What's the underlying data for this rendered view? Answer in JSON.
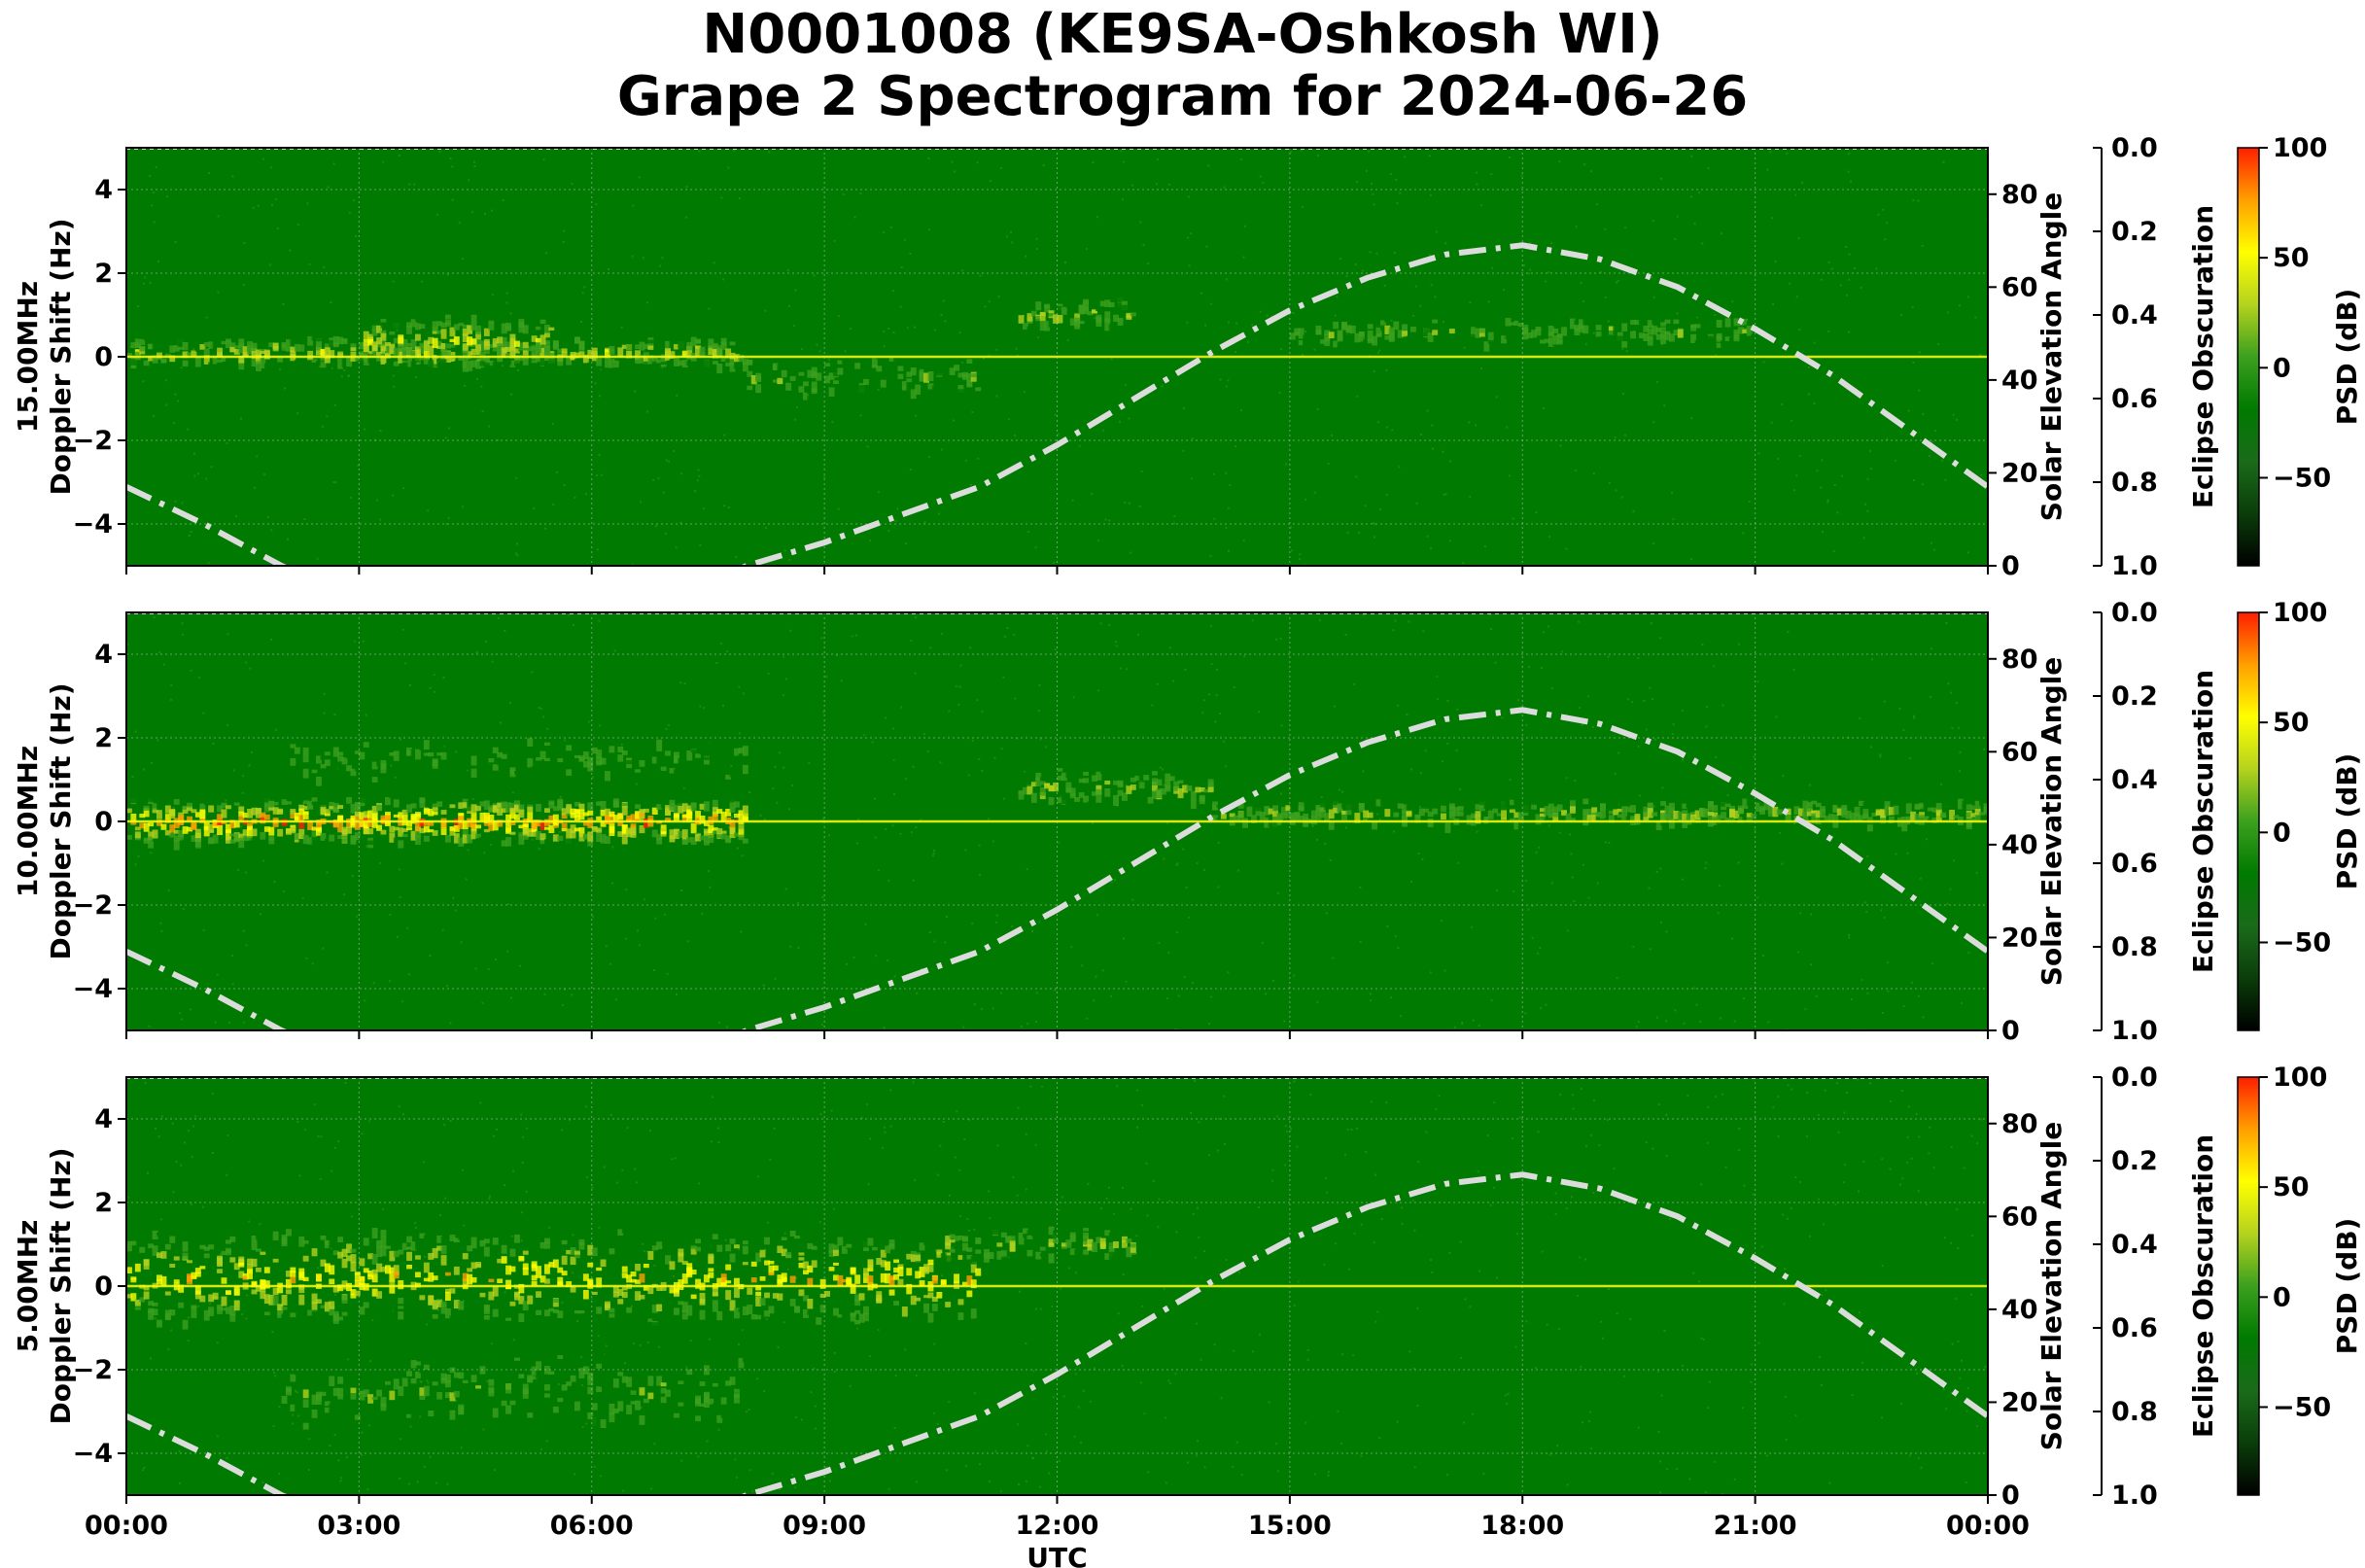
{
  "title_line1": "N0001008 (KE9SA-Oshkosh WI)",
  "title_line2": "Grape 2 Spectrogram for 2024-06-26",
  "colors": {
    "psd_colormap": [
      "#000000",
      "#0a3d0a",
      "#1a6b1a",
      "#007a00",
      "#3ca01e",
      "#b4d21e",
      "#ffff00",
      "#ffa000",
      "#ff1e00"
    ],
    "solar_curve": "#dcdcdc",
    "grid": "#cccccc"
  },
  "chart_data": [
    {
      "type": "heatmap",
      "frequency_label": "15.00MHz",
      "ylabel": "Doppler Shift (Hz)",
      "xlabel": "",
      "ylim": [
        -5,
        5
      ],
      "y_ticks": [
        4,
        2,
        0,
        -2,
        -4
      ],
      "y_tick_labels": [
        "4",
        "2",
        "0",
        "−2",
        "−4"
      ],
      "x_range_hours": [
        0,
        24
      ],
      "right_axis": {
        "label": "Solar Elevation Angle",
        "ylim": [
          0,
          90
        ],
        "ticks": [
          0,
          20,
          40,
          60,
          80
        ]
      },
      "eclipse_axis": {
        "label": "Eclipse Obscuration",
        "ylim": [
          1.0,
          0.0
        ],
        "tick_labels": [
          "0.0",
          "0.2",
          "0.4",
          "0.6",
          "0.8",
          "1.0"
        ]
      },
      "colorbar": {
        "label": "PSD (dB)",
        "range": [
          -90,
          100
        ],
        "tick_labels": [
          "100",
          "50",
          "0",
          "−50"
        ]
      },
      "grid": true,
      "carrier_line_hz": 0,
      "activity": [
        {
          "start_h": 0,
          "end_h": 8,
          "center_hz": 0.1,
          "spread_hz": 0.6,
          "level": 0.55
        },
        {
          "start_h": 3,
          "end_h": 5.5,
          "center_hz": 0.4,
          "spread_hz": 0.9,
          "level": 0.6
        },
        {
          "start_h": 8,
          "end_h": 11,
          "center_hz": -0.5,
          "spread_hz": 1.2,
          "level": 0.45
        },
        {
          "start_h": 11.5,
          "end_h": 13,
          "center_hz": 1.0,
          "spread_hz": 0.7,
          "level": 0.5
        },
        {
          "start_h": 15,
          "end_h": 21,
          "center_hz": 0.6,
          "spread_hz": 0.8,
          "level": 0.45
        }
      ],
      "solar_elevation": {
        "x_hours": [
          0,
          1,
          2,
          3,
          4,
          5,
          6,
          7,
          8,
          9,
          10,
          11,
          12,
          13,
          14,
          15,
          16,
          17,
          18,
          19,
          20,
          21,
          22,
          23,
          24
        ],
        "values": [
          17,
          9,
          0,
          -7,
          -12,
          -14,
          -12,
          -7,
          0,
          5,
          11,
          17,
          26,
          36,
          46,
          55,
          62,
          67,
          69,
          66,
          60,
          51,
          41,
          29,
          17
        ]
      }
    },
    {
      "type": "heatmap",
      "frequency_label": "10.00MHz",
      "ylabel": "Doppler Shift (Hz)",
      "xlabel": "",
      "ylim": [
        -5,
        5
      ],
      "y_ticks": [
        4,
        2,
        0,
        -2,
        -4
      ],
      "y_tick_labels": [
        "4",
        "2",
        "0",
        "−2",
        "−4"
      ],
      "x_range_hours": [
        0,
        24
      ],
      "right_axis": {
        "label": "Solar Elevation Angle",
        "ylim": [
          0,
          90
        ],
        "ticks": [
          0,
          20,
          40,
          60,
          80
        ]
      },
      "eclipse_axis": {
        "label": "Eclipse Obscuration",
        "ylim": [
          1.0,
          0.0
        ],
        "tick_labels": [
          "0.0",
          "0.2",
          "0.4",
          "0.6",
          "0.8",
          "1.0"
        ]
      },
      "colorbar": {
        "label": "PSD (dB)",
        "range": [
          -90,
          100
        ],
        "tick_labels": [
          "100",
          "50",
          "0",
          "−50"
        ]
      },
      "grid": true,
      "carrier_line_hz": 0,
      "activity": [
        {
          "start_h": 0,
          "end_h": 8,
          "center_hz": 0.0,
          "spread_hz": 0.7,
          "level": 0.8
        },
        {
          "start_h": 2,
          "end_h": 8,
          "center_hz": 1.5,
          "spread_hz": 1.5,
          "level": 0.4
        },
        {
          "start_h": 11.5,
          "end_h": 14,
          "center_hz": 0.8,
          "spread_hz": 0.8,
          "level": 0.5
        },
        {
          "start_h": 14,
          "end_h": 24,
          "center_hz": 0.2,
          "spread_hz": 0.6,
          "level": 0.5
        }
      ],
      "solar_elevation": {
        "x_hours": [
          0,
          1,
          2,
          3,
          4,
          5,
          6,
          7,
          8,
          9,
          10,
          11,
          12,
          13,
          14,
          15,
          16,
          17,
          18,
          19,
          20,
          21,
          22,
          23,
          24
        ],
        "values": [
          17,
          9,
          0,
          -7,
          -12,
          -14,
          -12,
          -7,
          0,
          5,
          11,
          17,
          26,
          36,
          46,
          55,
          62,
          67,
          69,
          66,
          60,
          51,
          41,
          29,
          17
        ]
      }
    },
    {
      "type": "heatmap",
      "frequency_label": "5.00MHz",
      "ylabel": "Doppler Shift (Hz)",
      "xlabel": "UTC",
      "ylim": [
        -5,
        5
      ],
      "y_ticks": [
        4,
        2,
        0,
        -2,
        -4
      ],
      "y_tick_labels": [
        "4",
        "2",
        "0",
        "−2",
        "−4"
      ],
      "x_range_hours": [
        0,
        24
      ],
      "x_tick_labels": [
        "00:00",
        "03:00",
        "06:00",
        "09:00",
        "12:00",
        "15:00",
        "18:00",
        "21:00",
        "00:00"
      ],
      "right_axis": {
        "label": "Solar Elevation Angle",
        "ylim": [
          0,
          90
        ],
        "ticks": [
          0,
          20,
          40,
          60,
          80
        ]
      },
      "eclipse_axis": {
        "label": "Eclipse Obscuration",
        "ylim": [
          1.0,
          0.0
        ],
        "tick_labels": [
          "0.0",
          "0.2",
          "0.4",
          "0.6",
          "0.8",
          "1.0"
        ]
      },
      "colorbar": {
        "label": "PSD (dB)",
        "range": [
          -90,
          100
        ],
        "tick_labels": [
          "100",
          "50",
          "0",
          "−50"
        ]
      },
      "grid": true,
      "carrier_line_hz": 0,
      "activity": [
        {
          "start_h": 0,
          "end_h": 11,
          "center_hz": 0.2,
          "spread_hz": 1.6,
          "level": 0.7
        },
        {
          "start_h": 2,
          "end_h": 8,
          "center_hz": -2.5,
          "spread_hz": 2.0,
          "level": 0.45
        },
        {
          "start_h": 10.5,
          "end_h": 13,
          "center_hz": 1.0,
          "spread_hz": 0.8,
          "level": 0.5
        }
      ],
      "solar_elevation": {
        "x_hours": [
          0,
          1,
          2,
          3,
          4,
          5,
          6,
          7,
          8,
          9,
          10,
          11,
          12,
          13,
          14,
          15,
          16,
          17,
          18,
          19,
          20,
          21,
          22,
          23,
          24
        ],
        "values": [
          17,
          9,
          0,
          -7,
          -12,
          -14,
          -12,
          -7,
          0,
          5,
          11,
          17,
          26,
          36,
          46,
          55,
          62,
          67,
          69,
          66,
          60,
          51,
          41,
          29,
          17
        ]
      }
    }
  ]
}
